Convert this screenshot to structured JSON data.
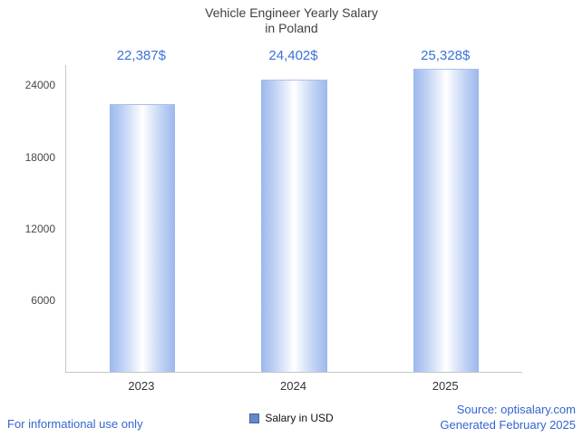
{
  "title": {
    "line1": "Vehicle Engineer Yearly Salary",
    "line2": "in Poland"
  },
  "chart_data": {
    "type": "bar",
    "title": "Vehicle Engineer Yearly Salary in Poland",
    "categories": [
      "2023",
      "2024",
      "2025"
    ],
    "values": [
      22387,
      24402,
      25328
    ],
    "value_labels": [
      "22,387$",
      "24,402$",
      "25,328$"
    ],
    "xlabel": "",
    "ylabel": "",
    "ylim": [
      0,
      25700
    ],
    "yticks": [
      6000,
      12000,
      18000,
      24000
    ],
    "grid": false,
    "legend_position": "bottom",
    "series_name": "Salary in USD"
  },
  "legend": {
    "label": "Salary in USD"
  },
  "footer": {
    "left": "For informational use only",
    "source": "Source: optisalary.com",
    "generated": "Generated February 2025"
  },
  "colors": {
    "accent_blue": "#3b72d8",
    "footer_blue": "#3465d0",
    "bar_edge": "#9cb8ec",
    "bar_center": "#ffffff",
    "axis_line": "#c6c6c6",
    "title_text": "#3f3f3f",
    "legend_swatch": "#6388cc"
  }
}
